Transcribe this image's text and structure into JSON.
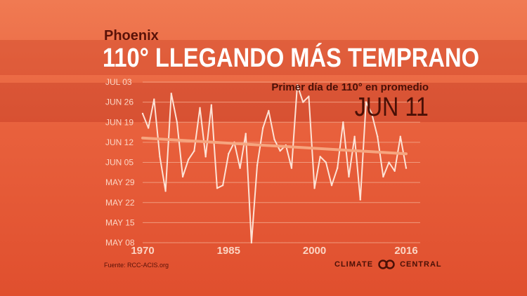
{
  "header": {
    "subtitle": "Phoenix",
    "title": "110° LLEGANDO MÁS TEMPRANO"
  },
  "average": {
    "label": "Primer día de 110° en promedio",
    "value": "JUN 11"
  },
  "footer": {
    "source": "Fuente: RCC-ACIS.org",
    "brand_left": "CLIMATE",
    "brand_right": "CENTRAL"
  },
  "colors": {
    "line": "#fde3d6",
    "trend": "#f6a57f",
    "grid": "#f09a7c",
    "tick_text": "#fbd5c4"
  },
  "icons": [
    "climate-central-logo-icon"
  ],
  "chart_data": {
    "type": "line",
    "y_is_day_of_year": true,
    "y_ticks": [
      {
        "label": "JUL 03",
        "value": 184
      },
      {
        "label": "JUN 26",
        "value": 177
      },
      {
        "label": "JUN 19",
        "value": 170
      },
      {
        "label": "JUN 12",
        "value": 163
      },
      {
        "label": "JUN 05",
        "value": 156
      },
      {
        "label": "MAY 29",
        "value": 149
      },
      {
        "label": "MAY 22",
        "value": 142
      },
      {
        "label": "MAY 15",
        "value": 135
      },
      {
        "label": "MAY 08",
        "value": 128
      }
    ],
    "x_ticks": [
      1970,
      1985,
      2000,
      2016
    ],
    "xlim": [
      1970,
      2016
    ],
    "ylim": [
      128,
      184
    ],
    "grid": true,
    "series": [
      {
        "x": [
          1970,
          1971,
          1972,
          1973,
          1974,
          1975,
          1976,
          1977,
          1978,
          1979,
          1980,
          1981,
          1982,
          1983,
          1984,
          1985,
          1986,
          1987,
          1988,
          1989,
          1990,
          1991,
          1992,
          1993,
          1994,
          1995,
          1996,
          1997,
          1998,
          1999,
          2000,
          2001,
          2002,
          2003,
          2004,
          2005,
          2006,
          2007,
          2008,
          2009,
          2010,
          2011,
          2012,
          2013,
          2014,
          2015,
          2016
        ],
        "y": [
          173,
          168,
          178,
          158,
          146,
          180,
          170,
          151,
          157,
          160,
          175,
          158,
          176,
          147,
          148,
          159,
          163,
          154,
          166,
          128,
          155,
          168,
          174,
          164,
          160,
          162,
          154,
          183,
          177,
          179,
          147,
          158,
          156,
          148,
          154,
          170,
          151,
          165,
          143,
          177,
          173,
          165,
          151,
          156,
          153,
          165,
          154
        ]
      }
    ],
    "trend": {
      "x": [
        1970,
        2016
      ],
      "y": [
        164.5,
        159
      ]
    }
  }
}
